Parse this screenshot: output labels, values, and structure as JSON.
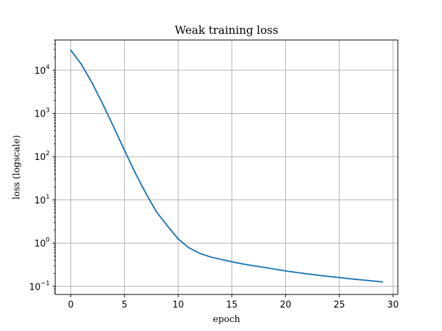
{
  "chart_data": {
    "type": "line",
    "title": "Weak training loss",
    "xlabel": "epoch",
    "ylabel": "loss (logscale)",
    "yscale": "log",
    "xlim": [
      -1.45,
      30.45
    ],
    "ylim": [
      0.065,
      50000
    ],
    "grid": true,
    "x_ticks": [
      {
        "value": 0,
        "label": "0"
      },
      {
        "value": 5,
        "label": "5"
      },
      {
        "value": 10,
        "label": "10"
      },
      {
        "value": 15,
        "label": "15"
      },
      {
        "value": 20,
        "label": "20"
      },
      {
        "value": 25,
        "label": "25"
      },
      {
        "value": 30,
        "label": "30"
      }
    ],
    "y_ticks": [
      {
        "value": 0.1,
        "base": "10",
        "exp": "−1"
      },
      {
        "value": 1,
        "base": "10",
        "exp": "0"
      },
      {
        "value": 10,
        "base": "10",
        "exp": "1"
      },
      {
        "value": 100,
        "base": "10",
        "exp": "2"
      },
      {
        "value": 1000,
        "base": "10",
        "exp": "3"
      },
      {
        "value": 10000,
        "base": "10",
        "exp": "4"
      }
    ],
    "series": [
      {
        "color": "#1f77b4",
        "x": [
          0,
          1,
          2,
          3,
          4,
          5,
          6,
          7,
          8,
          9,
          10,
          11,
          12,
          13,
          14,
          15,
          16,
          17,
          18,
          19,
          20,
          21,
          22,
          23,
          24,
          25,
          26,
          27,
          28,
          29
        ],
        "y": [
          29000,
          13500,
          5000,
          1600,
          480,
          140,
          42,
          14,
          5.2,
          2.5,
          1.25,
          0.78,
          0.58,
          0.48,
          0.42,
          0.37,
          0.33,
          0.3,
          0.275,
          0.25,
          0.228,
          0.21,
          0.195,
          0.182,
          0.17,
          0.16,
          0.15,
          0.142,
          0.134,
          0.127
        ]
      }
    ]
  }
}
